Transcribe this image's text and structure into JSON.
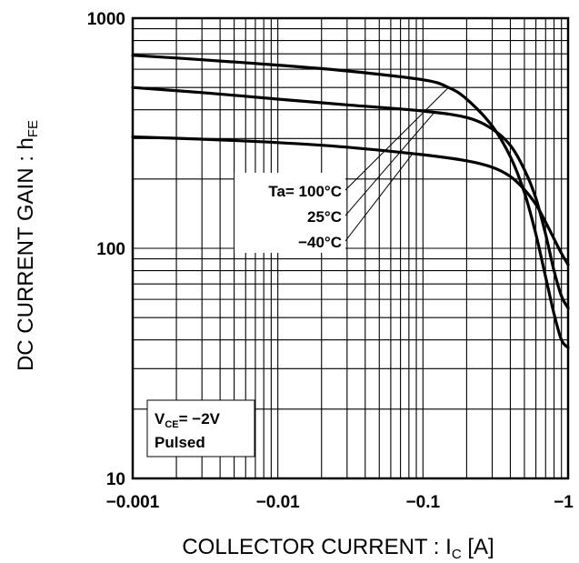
{
  "chart_data": {
    "type": "line",
    "xlabel": {
      "main": "COLLECTOR CURRENT : I",
      "sub": "C",
      "unit": " [A]"
    },
    "ylabel": {
      "main": "DC CURRENT GAIN : h",
      "sub": "FE"
    },
    "x_scale": "log",
    "y_scale": "log",
    "xlim": [
      -0.001,
      -1
    ],
    "ylim": [
      10,
      1000
    ],
    "grid": true,
    "x_ticks": [
      {
        "value": -0.001,
        "label": "−0.001"
      },
      {
        "value": -0.01,
        "label": "−0.01"
      },
      {
        "value": -0.1,
        "label": "−0.1"
      },
      {
        "value": -1,
        "label": "−1"
      }
    ],
    "y_ticks": [
      {
        "value": 10,
        "label": "10"
      },
      {
        "value": 100,
        "label": "100"
      },
      {
        "value": 1000,
        "label": "1000"
      }
    ],
    "series": [
      {
        "name": "Ta= 100°C",
        "x": [
          -0.001,
          -0.003,
          -0.01,
          -0.03,
          -0.1,
          -0.15,
          -0.2,
          -0.3,
          -0.4,
          -0.5,
          -0.6,
          -0.7,
          -0.8,
          -0.9,
          -1.0
        ],
        "y": [
          690,
          660,
          625,
          590,
          540,
          500,
          445,
          340,
          250,
          175,
          115,
          75,
          52,
          40,
          37
        ]
      },
      {
        "name": "25°C",
        "x": [
          -0.001,
          -0.003,
          -0.01,
          -0.03,
          -0.1,
          -0.2,
          -0.3,
          -0.4,
          -0.5,
          -0.6,
          -0.7,
          -0.8,
          -0.9,
          -1.0
        ],
        "y": [
          500,
          475,
          445,
          420,
          395,
          370,
          330,
          280,
          220,
          165,
          115,
          80,
          62,
          55
        ]
      },
      {
        "name": "−40°C",
        "x": [
          -0.001,
          -0.003,
          -0.01,
          -0.03,
          -0.1,
          -0.2,
          -0.3,
          -0.4,
          -0.5,
          -0.6,
          -0.7,
          -0.8,
          -0.9,
          -1.0
        ],
        "y": [
          305,
          298,
          288,
          275,
          255,
          240,
          225,
          205,
          180,
          155,
          130,
          110,
          95,
          85
        ]
      }
    ],
    "annotations": {
      "series_labels": [
        "Ta= 100°C",
        "25°C",
        "−40°C"
      ],
      "condition": {
        "v_main": "V",
        "v_sub": "CE",
        "v_value": "= −2V",
        "mode": "Pulsed"
      }
    }
  }
}
